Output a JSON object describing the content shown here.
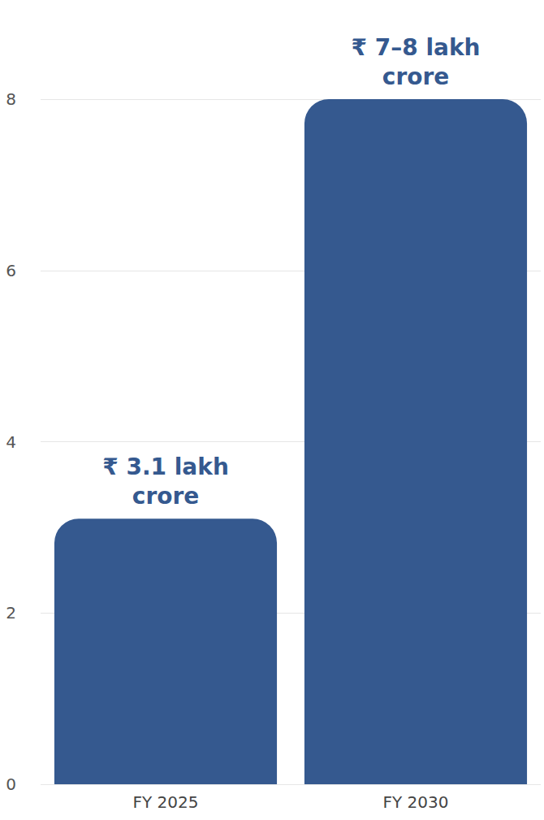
{
  "chart_data": {
    "type": "bar",
    "categories": [
      "FY 2025",
      "FY 2030"
    ],
    "values": [
      3.1,
      8
    ],
    "value_labels": [
      "₹ 3.1 lakh crore",
      "₹ 7–8 lakh crore"
    ],
    "data_labels": true,
    "color": "#35598f",
    "ylim": [
      0,
      8
    ],
    "yticks": [
      0,
      2,
      4,
      6,
      8
    ],
    "grid": true
  }
}
